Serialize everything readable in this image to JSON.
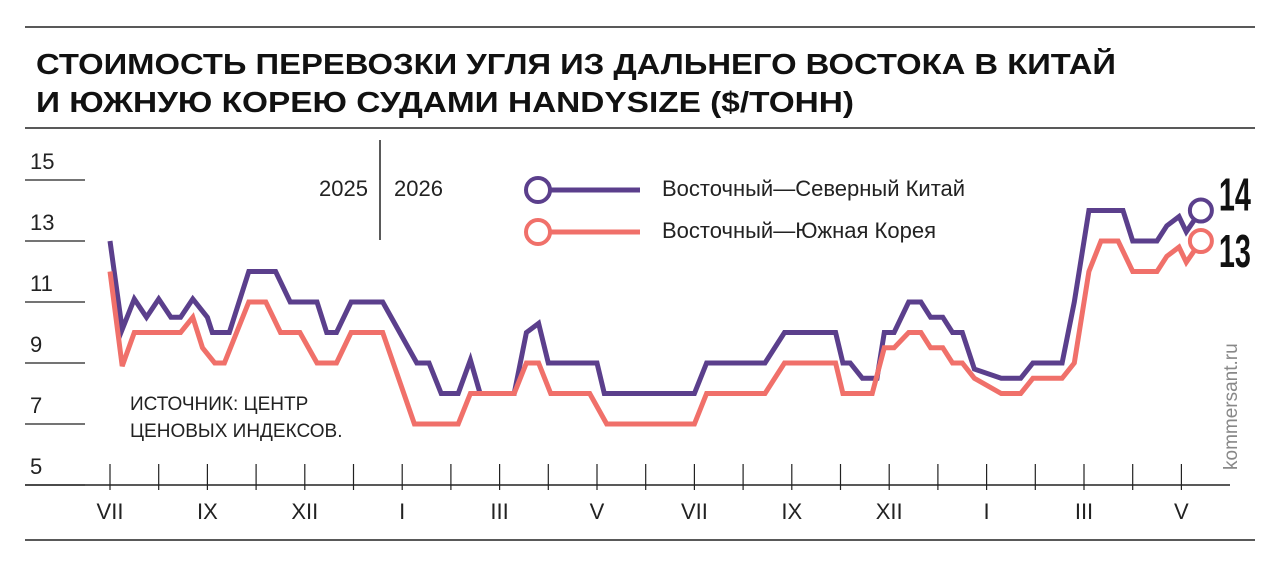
{
  "chart_data": {
    "type": "line",
    "title": [
      "СТОИМОСТЬ ПЕРЕВОЗКИ УГЛЯ ИЗ ДАЛЬНЕГО ВОСТОКА В КИТАЙ",
      "И ЮЖНУЮ КОРЕЮ СУДАМИ HANDYSIZE ($/ТОНН)"
    ],
    "year_labels": [
      "2025",
      "2026"
    ],
    "source": [
      "ИСТОЧНИК: ЦЕНТР",
      "ЦЕНОВЫХ ИНДЕКСОВ."
    ],
    "watermark": "kommersant.ru",
    "ylim": [
      5,
      15
    ],
    "yticks": [
      5,
      7,
      9,
      11,
      13,
      15
    ],
    "xlim": [
      0,
      22.5
    ],
    "xticks": [
      {
        "value": 0,
        "label": "VII"
      },
      {
        "value": 1,
        "label": null
      },
      {
        "value": 2,
        "label": "IX"
      },
      {
        "value": 3,
        "label": null
      },
      {
        "value": 4,
        "label": "XII"
      },
      {
        "value": 5,
        "label": null
      },
      {
        "value": 6,
        "label": "I"
      },
      {
        "value": 7,
        "label": null
      },
      {
        "value": 8,
        "label": "III"
      },
      {
        "value": 9,
        "label": null
      },
      {
        "value": 10,
        "label": "V"
      },
      {
        "value": 11,
        "label": null
      },
      {
        "value": 12,
        "label": "VII"
      },
      {
        "value": 13,
        "label": null
      },
      {
        "value": 14,
        "label": "IX"
      },
      {
        "value": 15,
        "label": null
      },
      {
        "value": 16,
        "label": "XII"
      },
      {
        "value": 17,
        "label": null
      },
      {
        "value": 18,
        "label": "I"
      },
      {
        "value": 19,
        "label": null
      },
      {
        "value": 20,
        "label": "III"
      },
      {
        "value": 21,
        "label": null
      },
      {
        "value": 22,
        "label": "V"
      }
    ],
    "series": [
      {
        "name": "Восточный—Северный Китай",
        "color": "#5b3f8c",
        "x": [
          0,
          0.25,
          0.5,
          0.75,
          1,
          1.25,
          1.45,
          1.7,
          2,
          2.1,
          2.45,
          2.85,
          3.4,
          3.7,
          4.25,
          4.45,
          4.65,
          4.95,
          5.6,
          6.3,
          6.55,
          6.8,
          7.15,
          7.4,
          7.6,
          8.3,
          8.55,
          8.8,
          9,
          10,
          10.15,
          12,
          12.25,
          13.45,
          13.85,
          14.9,
          15.05,
          15.2,
          15.45,
          15.75,
          15.9,
          16.1,
          16.4,
          16.65,
          16.85,
          17.1,
          17.3,
          17.5,
          17.75,
          18.3,
          18.7,
          18.95,
          19.55,
          19.8,
          20.1,
          20.8,
          21,
          21.5,
          21.7,
          21.95,
          22.1,
          22.4
        ],
        "values": [
          13,
          10.1,
          11.1,
          10.5,
          11.1,
          10.5,
          10.5,
          11.1,
          10.5,
          10,
          10,
          12,
          12,
          11,
          11,
          10,
          10,
          11,
          11,
          9,
          9,
          8,
          8,
          9.1,
          8,
          8,
          10,
          10.3,
          9,
          9,
          8,
          8,
          9,
          9,
          10,
          10,
          9,
          9,
          8.5,
          8.5,
          10,
          10,
          11,
          11,
          10.5,
          10.5,
          10,
          10,
          8.8,
          8.5,
          8.5,
          9,
          9,
          11,
          14,
          14,
          13,
          13,
          13.5,
          13.8,
          13.3,
          14
        ]
      },
      {
        "name": "Восточный—Южная Корея",
        "color": "#f0706a",
        "x": [
          0,
          0.25,
          0.5,
          1.45,
          1.7,
          1.9,
          2.15,
          2.35,
          2.85,
          3.2,
          3.5,
          3.9,
          4.25,
          4.65,
          4.95,
          5.6,
          6.25,
          7.15,
          7.4,
          8.3,
          8.55,
          8.8,
          9.05,
          9.85,
          10.2,
          12,
          12.25,
          13.45,
          13.85,
          14.9,
          15.05,
          15.65,
          15.9,
          16.1,
          16.4,
          16.65,
          16.85,
          17.1,
          17.3,
          17.5,
          17.75,
          18.3,
          18.7,
          18.95,
          19.55,
          19.8,
          20.1,
          20.35,
          20.7,
          21,
          21.5,
          21.7,
          21.95,
          22.1,
          22.4
        ],
        "values": [
          12,
          8.9,
          10,
          10,
          10.5,
          9.5,
          9,
          9,
          11,
          11,
          10,
          10,
          9,
          9,
          10,
          10,
          7,
          7,
          8,
          8,
          9,
          9,
          8,
          8,
          7,
          7,
          8,
          8,
          9,
          9,
          8,
          8,
          9.5,
          9.5,
          10,
          10,
          9.5,
          9.5,
          9,
          9,
          8.5,
          8,
          8,
          8.5,
          8.5,
          9,
          12,
          13,
          13,
          12,
          12,
          12.5,
          12.8,
          12.3,
          13
        ]
      }
    ]
  }
}
